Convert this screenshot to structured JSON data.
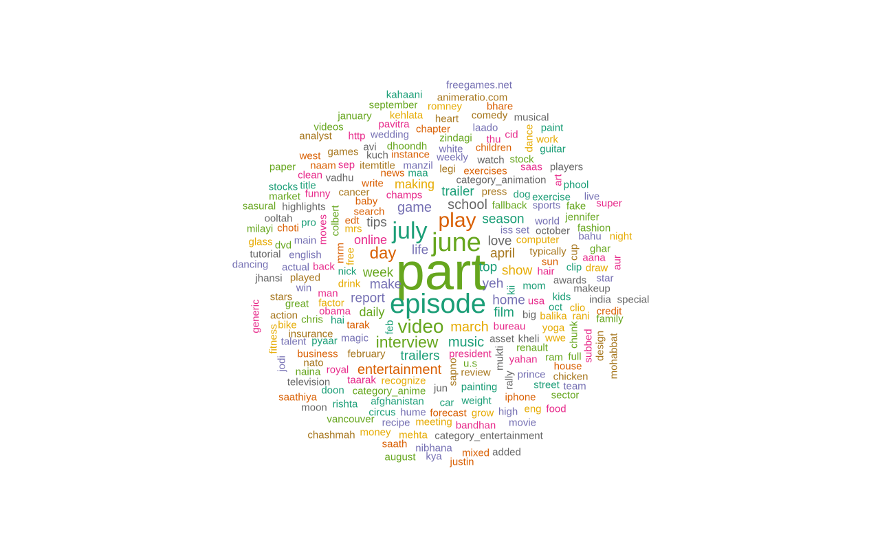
{
  "palette": {
    "teal": "#1b9e77",
    "orange": "#d95f02",
    "purple": "#7570b3",
    "pink": "#e7298a",
    "green": "#66a61e",
    "gold": "#e6ab02",
    "brown": "#a6761d",
    "gray": "#666666"
  },
  "words": [
    {
      "text": "part",
      "color": "green"
    },
    {
      "text": "episode",
      "color": "teal"
    },
    {
      "text": "june",
      "color": "green"
    },
    {
      "text": "july",
      "color": "teal"
    },
    {
      "text": "play",
      "color": "orange"
    },
    {
      "text": "video",
      "color": "green"
    },
    {
      "text": "interview",
      "color": "green"
    },
    {
      "text": "day",
      "color": "orange"
    },
    {
      "text": "entertainment",
      "color": "orange"
    },
    {
      "text": "march",
      "color": "gold"
    },
    {
      "text": "school",
      "color": "gray"
    },
    {
      "text": "game",
      "color": "purple"
    },
    {
      "text": "making",
      "color": "gold"
    },
    {
      "text": "trailer",
      "color": "teal"
    },
    {
      "text": "season",
      "color": "teal"
    },
    {
      "text": "music",
      "color": "teal"
    },
    {
      "text": "trailers",
      "color": "teal"
    },
    {
      "text": "online",
      "color": "pink"
    },
    {
      "text": "week",
      "color": "green"
    },
    {
      "text": "make",
      "color": "purple"
    },
    {
      "text": "report",
      "color": "purple"
    },
    {
      "text": "daily",
      "color": "green"
    },
    {
      "text": "tips",
      "color": "gray"
    },
    {
      "text": "life",
      "color": "purple"
    },
    {
      "text": "love",
      "color": "gray"
    },
    {
      "text": "april",
      "color": "brown"
    },
    {
      "text": "top",
      "color": "teal"
    },
    {
      "text": "show",
      "color": "gold"
    },
    {
      "text": "yeh",
      "color": "purple"
    },
    {
      "text": "home",
      "color": "purple"
    },
    {
      "text": "film",
      "color": "teal"
    },
    {
      "text": "freegames.net",
      "color": "purple"
    },
    {
      "text": "animeratio.com",
      "color": "brown"
    },
    {
      "text": "kahaani",
      "color": "teal"
    },
    {
      "text": "september",
      "color": "green"
    },
    {
      "text": "romney",
      "color": "gold"
    },
    {
      "text": "bhare",
      "color": "orange"
    },
    {
      "text": "kehlata",
      "color": "gold"
    },
    {
      "text": "heart",
      "color": "brown"
    },
    {
      "text": "comedy",
      "color": "brown"
    },
    {
      "text": "musical",
      "color": "gray"
    },
    {
      "text": "january",
      "color": "green"
    },
    {
      "text": "pavitra",
      "color": "pink"
    },
    {
      "text": "chapter",
      "color": "orange"
    },
    {
      "text": "laado",
      "color": "purple"
    },
    {
      "text": "paint",
      "color": "teal"
    },
    {
      "text": "videos",
      "color": "green"
    },
    {
      "text": "http",
      "color": "pink"
    },
    {
      "text": "wedding",
      "color": "purple"
    },
    {
      "text": "zindagi",
      "color": "green"
    },
    {
      "text": "cid",
      "color": "pink"
    },
    {
      "text": "work",
      "color": "gold"
    },
    {
      "text": "analyst",
      "color": "brown"
    },
    {
      "text": "avi",
      "color": "gray"
    },
    {
      "text": "dhoondh",
      "color": "green"
    },
    {
      "text": "white",
      "color": "purple"
    },
    {
      "text": "thu",
      "color": "pink"
    },
    {
      "text": "children",
      "color": "orange"
    },
    {
      "text": "guitar",
      "color": "teal"
    },
    {
      "text": "games",
      "color": "brown"
    },
    {
      "text": "kuch",
      "color": "gray"
    },
    {
      "text": "instance",
      "color": "orange"
    },
    {
      "text": "weekly",
      "color": "purple"
    },
    {
      "text": "west",
      "color": "orange"
    },
    {
      "text": "watch",
      "color": "gray"
    },
    {
      "text": "stock",
      "color": "green"
    },
    {
      "text": "paper",
      "color": "green"
    },
    {
      "text": "naam",
      "color": "orange"
    },
    {
      "text": "sep",
      "color": "pink"
    },
    {
      "text": "itemtitle",
      "color": "brown"
    },
    {
      "text": "manzil",
      "color": "purple"
    },
    {
      "text": "legi",
      "color": "brown"
    },
    {
      "text": "exercises",
      "color": "orange"
    },
    {
      "text": "saas",
      "color": "pink"
    },
    {
      "text": "players",
      "color": "gray"
    },
    {
      "text": "clean",
      "color": "pink"
    },
    {
      "text": "vadhu",
      "color": "gray"
    },
    {
      "text": "news",
      "color": "orange"
    },
    {
      "text": "maa",
      "color": "teal"
    },
    {
      "text": "category_animation",
      "color": "gray"
    },
    {
      "text": "phool",
      "color": "teal"
    },
    {
      "text": "stocks",
      "color": "teal"
    },
    {
      "text": "title",
      "color": "teal"
    },
    {
      "text": "write",
      "color": "orange"
    },
    {
      "text": "press",
      "color": "brown"
    },
    {
      "text": "funny",
      "color": "pink"
    },
    {
      "text": "cancer",
      "color": "brown"
    },
    {
      "text": "dog",
      "color": "teal"
    },
    {
      "text": "exercise",
      "color": "teal"
    },
    {
      "text": "live",
      "color": "purple"
    },
    {
      "text": "market",
      "color": "green"
    },
    {
      "text": "champs",
      "color": "pink"
    },
    {
      "text": "baby",
      "color": "orange"
    },
    {
      "text": "fallback",
      "color": "green"
    },
    {
      "text": "sports",
      "color": "purple"
    },
    {
      "text": "fake",
      "color": "green"
    },
    {
      "text": "super",
      "color": "pink"
    },
    {
      "text": "sasural",
      "color": "green"
    },
    {
      "text": "highlights",
      "color": "gray"
    },
    {
      "text": "search",
      "color": "orange"
    },
    {
      "text": "jennifer",
      "color": "green"
    },
    {
      "text": "ooltah",
      "color": "gray"
    },
    {
      "text": "edt",
      "color": "orange"
    },
    {
      "text": "world",
      "color": "purple"
    },
    {
      "text": "fashion",
      "color": "green"
    },
    {
      "text": "milayi",
      "color": "green"
    },
    {
      "text": "choti",
      "color": "orange"
    },
    {
      "text": "pro",
      "color": "teal"
    },
    {
      "text": "mrs",
      "color": "gold"
    },
    {
      "text": "iss",
      "color": "purple"
    },
    {
      "text": "set",
      "color": "purple"
    },
    {
      "text": "october",
      "color": "gray"
    },
    {
      "text": "bahu",
      "color": "purple"
    },
    {
      "text": "glass",
      "color": "gold"
    },
    {
      "text": "dvd",
      "color": "green"
    },
    {
      "text": "main",
      "color": "purple"
    },
    {
      "text": "computer",
      "color": "gold"
    },
    {
      "text": "night",
      "color": "gold"
    },
    {
      "text": "ghar",
      "color": "green"
    },
    {
      "text": "tutorial",
      "color": "gray"
    },
    {
      "text": "english",
      "color": "purple"
    },
    {
      "text": "typically",
      "color": "brown"
    },
    {
      "text": "aana",
      "color": "pink"
    },
    {
      "text": "sun",
      "color": "orange"
    },
    {
      "text": "dancing",
      "color": "purple"
    },
    {
      "text": "actual",
      "color": "purple"
    },
    {
      "text": "back",
      "color": "pink"
    },
    {
      "text": "nick",
      "color": "teal"
    },
    {
      "text": "clip",
      "color": "teal"
    },
    {
      "text": "draw",
      "color": "gold"
    },
    {
      "text": "hair",
      "color": "pink"
    },
    {
      "text": "jhansi",
      "color": "gray"
    },
    {
      "text": "played",
      "color": "brown"
    },
    {
      "text": "drink",
      "color": "gold"
    },
    {
      "text": "awards",
      "color": "gray"
    },
    {
      "text": "star",
      "color": "purple"
    },
    {
      "text": "win",
      "color": "purple"
    },
    {
      "text": "mom",
      "color": "teal"
    },
    {
      "text": "makeup",
      "color": "gray"
    },
    {
      "text": "man",
      "color": "pink"
    },
    {
      "text": "stars",
      "color": "brown"
    },
    {
      "text": "kids",
      "color": "teal"
    },
    {
      "text": "india",
      "color": "gray"
    },
    {
      "text": "special",
      "color": "gray"
    },
    {
      "text": "great",
      "color": "green"
    },
    {
      "text": "factor",
      "color": "gold"
    },
    {
      "text": "usa",
      "color": "pink"
    },
    {
      "text": "oct",
      "color": "teal"
    },
    {
      "text": "clio",
      "color": "gold"
    },
    {
      "text": "obama",
      "color": "pink"
    },
    {
      "text": "credit",
      "color": "orange"
    },
    {
      "text": "action",
      "color": "brown"
    },
    {
      "text": "big",
      "color": "gray"
    },
    {
      "text": "balika",
      "color": "gold"
    },
    {
      "text": "rani",
      "color": "gold"
    },
    {
      "text": "chris",
      "color": "green"
    },
    {
      "text": "hai",
      "color": "teal"
    },
    {
      "text": "family",
      "color": "green"
    },
    {
      "text": "bike",
      "color": "gold"
    },
    {
      "text": "tarak",
      "color": "orange"
    },
    {
      "text": "bureau",
      "color": "pink"
    },
    {
      "text": "yoga",
      "color": "gold"
    },
    {
      "text": "insurance",
      "color": "brown"
    },
    {
      "text": "magic",
      "color": "purple"
    },
    {
      "text": "asset",
      "color": "gray"
    },
    {
      "text": "kheli",
      "color": "gray"
    },
    {
      "text": "wwe",
      "color": "gold"
    },
    {
      "text": "talent",
      "color": "purple"
    },
    {
      "text": "pyaar",
      "color": "teal"
    },
    {
      "text": "renault",
      "color": "green"
    },
    {
      "text": "full",
      "color": "green"
    },
    {
      "text": "business",
      "color": "orange"
    },
    {
      "text": "february",
      "color": "brown"
    },
    {
      "text": "president",
      "color": "pink"
    },
    {
      "text": "ram",
      "color": "green"
    },
    {
      "text": "nato",
      "color": "brown"
    },
    {
      "text": "u.s",
      "color": "green"
    },
    {
      "text": "yahan",
      "color": "pink"
    },
    {
      "text": "house",
      "color": "orange"
    },
    {
      "text": "naina",
      "color": "green"
    },
    {
      "text": "royal",
      "color": "pink"
    },
    {
      "text": "review",
      "color": "brown"
    },
    {
      "text": "prince",
      "color": "purple"
    },
    {
      "text": "chicken",
      "color": "brown"
    },
    {
      "text": "television",
      "color": "gray"
    },
    {
      "text": "taarak",
      "color": "pink"
    },
    {
      "text": "recognize",
      "color": "gold"
    },
    {
      "text": "team",
      "color": "purple"
    },
    {
      "text": "street",
      "color": "teal"
    },
    {
      "text": "doon",
      "color": "teal"
    },
    {
      "text": "category_anime",
      "color": "green"
    },
    {
      "text": "jun",
      "color": "gray"
    },
    {
      "text": "painting",
      "color": "teal"
    },
    {
      "text": "saathiya",
      "color": "orange"
    },
    {
      "text": "iphone",
      "color": "orange"
    },
    {
      "text": "sector",
      "color": "green"
    },
    {
      "text": "rishta",
      "color": "teal"
    },
    {
      "text": "afghanistan",
      "color": "teal"
    },
    {
      "text": "car",
      "color": "teal"
    },
    {
      "text": "weight",
      "color": "teal"
    },
    {
      "text": "moon",
      "color": "gray"
    },
    {
      "text": "circus",
      "color": "teal"
    },
    {
      "text": "hume",
      "color": "purple"
    },
    {
      "text": "forecast",
      "color": "orange"
    },
    {
      "text": "grow",
      "color": "gold"
    },
    {
      "text": "high",
      "color": "purple"
    },
    {
      "text": "eng",
      "color": "gold"
    },
    {
      "text": "food",
      "color": "pink"
    },
    {
      "text": "vancouver",
      "color": "green"
    },
    {
      "text": "recipe",
      "color": "purple"
    },
    {
      "text": "meeting",
      "color": "gold"
    },
    {
      "text": "bandhan",
      "color": "pink"
    },
    {
      "text": "movie",
      "color": "purple"
    },
    {
      "text": "chashmah",
      "color": "brown"
    },
    {
      "text": "money",
      "color": "gold"
    },
    {
      "text": "mehta",
      "color": "gold"
    },
    {
      "text": "category_entertainment",
      "color": "gray"
    },
    {
      "text": "saath",
      "color": "orange"
    },
    {
      "text": "nibhana",
      "color": "purple"
    },
    {
      "text": "august",
      "color": "green"
    },
    {
      "text": "kya",
      "color": "purple"
    },
    {
      "text": "mixed",
      "color": "orange"
    },
    {
      "text": "added",
      "color": "gray"
    },
    {
      "text": "justin",
      "color": "orange"
    },
    {
      "text": "dance",
      "color": "gold"
    },
    {
      "text": "art",
      "color": "pink"
    },
    {
      "text": "colbert",
      "color": "green"
    },
    {
      "text": "moves",
      "color": "pink"
    },
    {
      "text": "mrm",
      "color": "orange"
    },
    {
      "text": "free",
      "color": "gold"
    },
    {
      "text": "cup",
      "color": "brown"
    },
    {
      "text": "aur",
      "color": "pink"
    },
    {
      "text": "kii",
      "color": "teal"
    },
    {
      "text": "generic",
      "color": "pink"
    },
    {
      "text": "fitness",
      "color": "gold"
    },
    {
      "text": "jodi",
      "color": "purple"
    },
    {
      "text": "feb",
      "color": "teal"
    },
    {
      "text": "chunk",
      "color": "green"
    },
    {
      "text": "subbed",
      "color": "pink"
    },
    {
      "text": "design",
      "color": "brown"
    },
    {
      "text": "mohabbat",
      "color": "brown"
    },
    {
      "text": "mukti",
      "color": "gray"
    },
    {
      "text": "sapno",
      "color": "brown"
    },
    {
      "text": "rally",
      "color": "gray"
    }
  ]
}
